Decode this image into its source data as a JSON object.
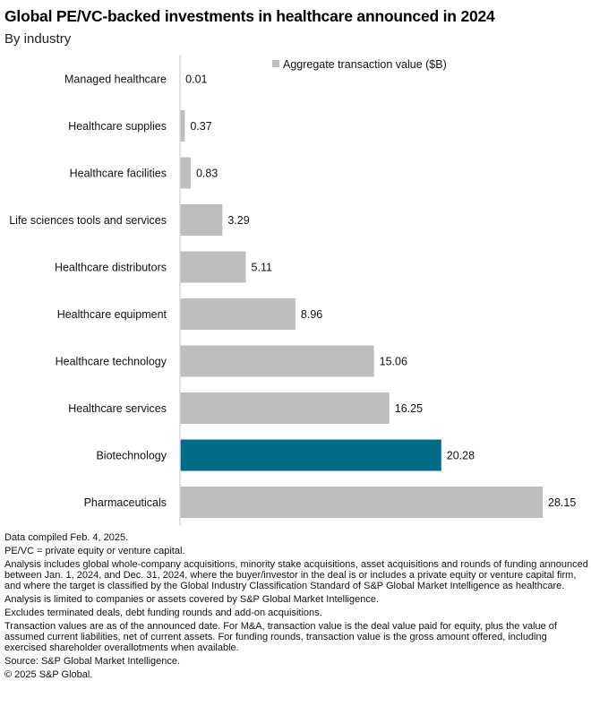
{
  "chart_data": {
    "type": "bar",
    "orientation": "horizontal",
    "title": "Global PE/VC-backed investments in healthcare announced in 2024",
    "subtitle": "By industry",
    "xlabel": "",
    "ylabel": "",
    "categories": [
      "Managed healthcare",
      "Healthcare supplies",
      "Healthcare facilities",
      "Life sciences tools and services",
      "Healthcare distributors",
      "Healthcare equipment",
      "Healthcare technology",
      "Healthcare services",
      "Biotechnology",
      "Pharmaceuticals"
    ],
    "series": [
      {
        "name": "Aggregate transaction value ($B)",
        "values": [
          0.01,
          0.37,
          0.83,
          3.29,
          5.11,
          8.96,
          15.06,
          16.25,
          20.28,
          28.15
        ],
        "value_labels": [
          "0.01",
          "0.37",
          "0.83",
          "3.29",
          "5.11",
          "8.96",
          "15.06",
          "16.25",
          "20.28",
          "28.15"
        ]
      }
    ],
    "highlight_category": "Biotechnology",
    "colors": {
      "default": "#bdbebf",
      "highlight": "#006b87",
      "axis": "#d9d9d9"
    },
    "xlim": [
      0,
      28.15
    ],
    "grid": false,
    "legend": {
      "position": "top-right",
      "label": "Aggregate transaction value ($B)"
    }
  },
  "notes": [
    "Data compiled Feb. 4, 2025.",
    "PE/VC = private equity or venture capital.",
    "Analysis includes global whole-company acquisitions, minority stake acquisitions, asset acquisitions and rounds of funding announced between Jan. 1, 2024, and Dec. 31, 2024, where the buyer/investor in the deal is or includes a private equity or venture capital firm, and where the target is classified by the Global Industry Classification Standard of S&P Global Market Intelligence as healthcare.",
    "Analysis is limited to companies or assets covered by S&P Global Market Intelligence.",
    "Excludes terminated deals, debt funding rounds and add-on acquisitions.",
    "Transaction values are as of the announced date. For M&A, transaction value is the deal value paid for equity, plus the value of assumed current liabilities, net of current assets. For funding rounds, transaction value is the gross amount offered, including exercised shareholder overallotments when available.",
    "Source: S&P Global Market Intelligence.",
    "© 2025 S&P Global."
  ]
}
